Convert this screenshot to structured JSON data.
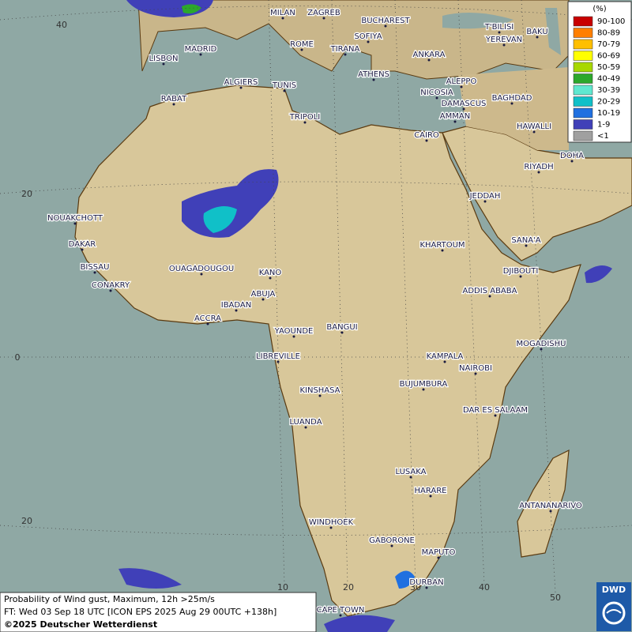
{
  "legend": {
    "unit": "(%)",
    "items": [
      {
        "label": "90-100",
        "color": "#c80000"
      },
      {
        "label": "80-89",
        "color": "#ff7f00"
      },
      {
        "label": "70-79",
        "color": "#ffbf00"
      },
      {
        "label": "60-69",
        "color": "#ffff00"
      },
      {
        "label": "50-59",
        "color": "#a8d800"
      },
      {
        "label": "40-49",
        "color": "#2ca82c"
      },
      {
        "label": "30-39",
        "color": "#60e8d0"
      },
      {
        "label": "20-29",
        "color": "#10c0c8"
      },
      {
        "label": "10-19",
        "color": "#2070e0"
      },
      {
        "label": "1-9",
        "color": "#4040b8"
      },
      {
        "label": "<1",
        "color": "#a0a0a0"
      }
    ]
  },
  "grid_labels": {
    "latitude": [
      "40",
      "20",
      "0",
      "20"
    ],
    "longitude": [
      "10",
      "20",
      "30",
      "40",
      "50"
    ]
  },
  "cities": [
    "MILAN",
    "ZAGREB",
    "BUCHAREST",
    "SOFIYA",
    "ROME",
    "TIRANA",
    "ATHENS",
    "ANKARA",
    "T'BILISI",
    "YEREVAN",
    "BAKU",
    "TEHRA",
    "MADRID",
    "LISBON",
    "ALGIERS",
    "TUNIS",
    "RABAT",
    "TRIPOLI",
    "ALEPPO",
    "NICOSIA",
    "DAMASCUS",
    "BAGHDAD",
    "AMMAN",
    "CAIRO",
    "HAWALLI",
    "DOHA",
    "RIYADH",
    "JEDDAH",
    "NOUAKCHOTT",
    "DAKAR",
    "BISSAU",
    "CONAKRY",
    "OUAGADOUGOU",
    "KANO",
    "ABUJA",
    "IBADAN",
    "ACCRA",
    "KHARTOUM",
    "SANA'A",
    "DJIBOUTI",
    "ADDIS ABABA",
    "YAOUNDE",
    "BANGUI",
    "LIBREVILLE",
    "MOGADISHU",
    "KAMPALA",
    "NAIROBI",
    "BUJUMBURA",
    "KINSHASA",
    "DAR ES SALAAM",
    "LUANDA",
    "LUSAKA",
    "HARARE",
    "ANTANANARIVO",
    "WINDHOEK",
    "GABORONE",
    "MAPUTO",
    "DURBAN",
    "CAPE TOWN"
  ],
  "footer": {
    "line1": "Probability of Wind gust, Maximum, 12h >25m/s",
    "line2": "FT: Wed 03 Sep 18 UTC [ICON EPS 2025 Aug 29 00UTC +138h]",
    "line3": "©2025 Deutscher Wetterdienst"
  },
  "logo": "DWD"
}
